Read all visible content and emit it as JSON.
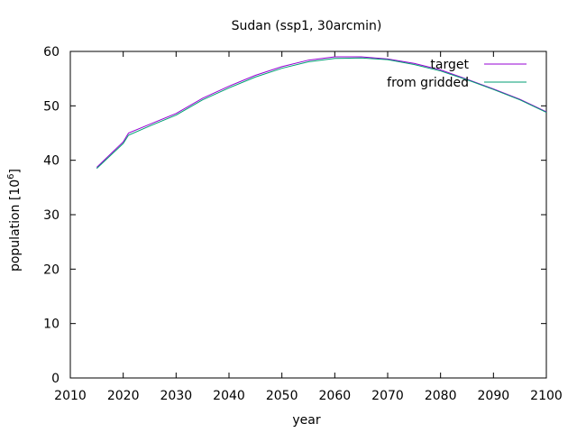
{
  "chart_data": {
    "type": "line",
    "title": "Sudan (ssp1, 30arcmin)",
    "xlabel": "year",
    "ylabel": {
      "prefix": "population [10",
      "sup": "6",
      "suffix": "]"
    },
    "xlim": [
      2010,
      2100
    ],
    "ylim": [
      0,
      60
    ],
    "xticks": [
      2010,
      2020,
      2030,
      2040,
      2050,
      2060,
      2070,
      2080,
      2090,
      2100
    ],
    "yticks": [
      0,
      10,
      20,
      30,
      40,
      50,
      60
    ],
    "grid": false,
    "legend_position": "top-right",
    "series": [
      {
        "name": "target",
        "color": "#9400d3",
        "x": [
          2015,
          2020,
          2021,
          2025,
          2030,
          2035,
          2040,
          2045,
          2050,
          2055,
          2060,
          2065,
          2070,
          2075,
          2080,
          2085,
          2090,
          2095,
          2100
        ],
        "y": [
          38.7,
          43.4,
          45.0,
          46.6,
          48.6,
          51.4,
          53.6,
          55.6,
          57.2,
          58.4,
          59.0,
          59.0,
          58.6,
          57.8,
          56.6,
          54.9,
          53.1,
          51.2,
          48.9
        ]
      },
      {
        "name": "from gridded",
        "color": "#009e73",
        "x": [
          2015,
          2020,
          2021,
          2025,
          2030,
          2035,
          2040,
          2045,
          2050,
          2055,
          2060,
          2065,
          2070,
          2075,
          2080,
          2085,
          2090,
          2095,
          2100
        ],
        "y": [
          38.5,
          43.1,
          44.6,
          46.3,
          48.3,
          51.1,
          53.3,
          55.3,
          56.9,
          58.1,
          58.7,
          58.8,
          58.5,
          57.6,
          56.4,
          54.8,
          53.0,
          51.1,
          48.8
        ]
      }
    ]
  }
}
